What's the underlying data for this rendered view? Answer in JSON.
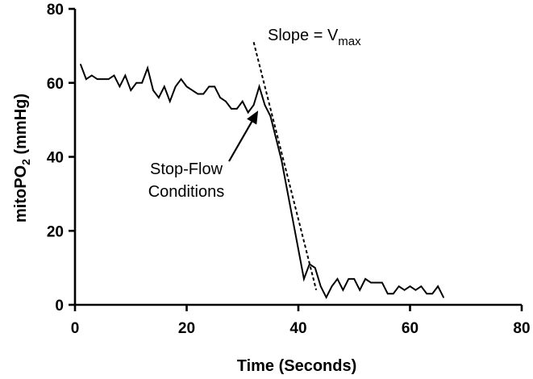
{
  "chart_data": {
    "type": "line",
    "title": "",
    "xlabel": "Time (Seconds)",
    "ylabel": {
      "main": "mitoPO",
      "sub": "2",
      "unit": " (mmHg)"
    },
    "xlim": [
      0,
      80
    ],
    "ylim": [
      0,
      80
    ],
    "x_ticks": [
      0,
      20,
      40,
      60,
      80
    ],
    "y_ticks": [
      0,
      20,
      40,
      60,
      80
    ],
    "grid": false,
    "legend": "none",
    "series": [
      {
        "name": "mitoPO2",
        "x": [
          1,
          2,
          3,
          4,
          5,
          6,
          7,
          8,
          9,
          10,
          11,
          12,
          13,
          14,
          15,
          16,
          17,
          18,
          19,
          20,
          21,
          22,
          23,
          24,
          25,
          26,
          27,
          28,
          29,
          30,
          31,
          32,
          33,
          34,
          35,
          36,
          37,
          38,
          39,
          40,
          41,
          42,
          43,
          44,
          45,
          46,
          47,
          48,
          49,
          50,
          51,
          52,
          53,
          54,
          55,
          56,
          57,
          58,
          59,
          60,
          61,
          62,
          63,
          64,
          65,
          66
        ],
        "values": [
          65,
          61,
          62,
          61,
          61,
          61,
          62,
          59,
          62,
          58,
          60,
          60,
          64,
          58,
          56,
          59,
          55,
          59,
          61,
          59,
          58,
          57,
          57,
          59,
          59,
          56,
          55,
          53,
          53,
          55,
          52,
          54,
          59,
          54,
          51,
          45,
          39,
          31,
          23,
          15,
          7,
          11,
          10,
          5,
          2,
          5,
          7,
          4,
          7,
          7,
          4,
          7,
          6,
          6,
          6,
          3,
          3,
          5,
          4,
          5,
          4,
          5,
          3,
          3,
          5,
          2
        ]
      }
    ],
    "slope_line": {
      "x": [
        32,
        43.2
      ],
      "y": [
        71,
        4
      ]
    },
    "annotations": {
      "slope": {
        "text": "Slope = V",
        "sub": "max"
      },
      "stop_flow": {
        "lines": [
          "Stop-Flow",
          "Conditions"
        ],
        "arrow_to": {
          "x": 32.8,
          "y": 52.5
        }
      }
    }
  }
}
